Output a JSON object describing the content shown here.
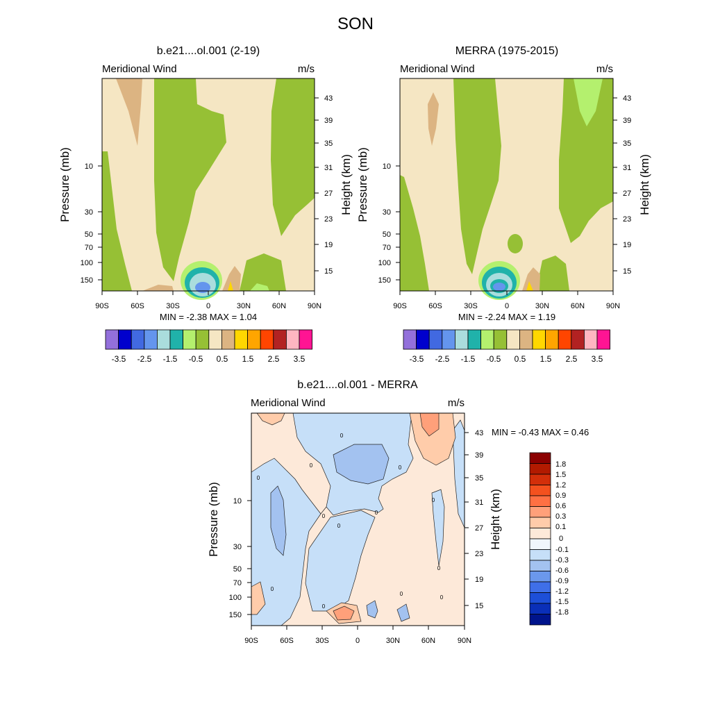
{
  "page_title": "SON",
  "chart_data": [
    {
      "type": "contour",
      "title": "b.e21....ol.001 (2-19)",
      "left_label": "Meridional Wind",
      "right_label": "m/s",
      "xlabel": "",
      "ylabel": "Pressure (mb)",
      "ylabel_right": "Height (km)",
      "xticks": [
        "90S",
        "60S",
        "30S",
        "0",
        "30N",
        "60N",
        "90N"
      ],
      "yticks": [
        "10",
        "30",
        "50",
        "70",
        "100",
        "150"
      ],
      "yticks_right": [
        "43",
        "39",
        "35",
        "31",
        "27",
        "23",
        "19",
        "15"
      ],
      "min_max_text": "MIN =  -2.38  MAX =   1.04",
      "min": -2.38,
      "max": 1.04,
      "colorbar_labels": [
        "-3.5",
        "-2.5",
        "-1.5",
        "-0.5",
        "0.5",
        "1.5",
        "2.5",
        "3.5"
      ],
      "colorbar_colors": [
        "#9370db",
        "#0000cd",
        "#4169e1",
        "#6495ed",
        "#aadddd",
        "#20b2aa",
        "#b4f06e",
        "#96c035",
        "#f5e6c3",
        "#dcb482",
        "#ffd700",
        "#ffa500",
        "#ff4500",
        "#b22222",
        "#ffb6c1",
        "#ff1493"
      ]
    },
    {
      "type": "contour",
      "title": "MERRA (1975-2015)",
      "left_label": "Meridional Wind",
      "right_label": "m/s",
      "xlabel": "",
      "ylabel": "Pressure (mb)",
      "ylabel_right": "Height (km)",
      "xticks": [
        "90S",
        "60S",
        "30S",
        "0",
        "30N",
        "60N",
        "90N"
      ],
      "yticks": [
        "10",
        "30",
        "50",
        "70",
        "100",
        "150"
      ],
      "yticks_right": [
        "43",
        "39",
        "35",
        "31",
        "27",
        "23",
        "19",
        "15"
      ],
      "min_max_text": "MIN =  -2.24  MAX =   1.19",
      "min": -2.24,
      "max": 1.19,
      "colorbar_labels": [
        "-3.5",
        "-2.5",
        "-1.5",
        "-0.5",
        "0.5",
        "1.5",
        "2.5",
        "3.5"
      ],
      "colorbar_colors": [
        "#9370db",
        "#0000cd",
        "#4169e1",
        "#6495ed",
        "#aadddd",
        "#20b2aa",
        "#b4f06e",
        "#96c035",
        "#f5e6c3",
        "#dcb482",
        "#ffd700",
        "#ffa500",
        "#ff4500",
        "#b22222",
        "#ffb6c1",
        "#ff1493"
      ]
    },
    {
      "type": "contour",
      "title": "b.e21....ol.001 - MERRA",
      "left_label": "Meridional Wind",
      "right_label": "m/s",
      "xlabel": "",
      "ylabel": "Pressure (mb)",
      "ylabel_right": "Height (km)",
      "xticks": [
        "90S",
        "60S",
        "30S",
        "0",
        "30N",
        "60N",
        "90N"
      ],
      "yticks": [
        "10",
        "30",
        "50",
        "70",
        "100",
        "150"
      ],
      "yticks_right": [
        "43",
        "39",
        "35",
        "31",
        "27",
        "23",
        "19",
        "15"
      ],
      "min_max_text": "MIN = -0.43  MAX =   0.46",
      "min": -0.43,
      "max": 0.46,
      "contour_label": "0",
      "colorbar_labels": [
        "1.8",
        "1.5",
        "1.2",
        "0.9",
        "0.6",
        "0.3",
        "0.1",
        "0",
        "-0.1",
        "-0.3",
        "-0.6",
        "-0.9",
        "-1.2",
        "-1.5",
        "-1.8"
      ],
      "colorbar_colors": [
        "#8b0000",
        "#b21a00",
        "#d32f0a",
        "#f4511e",
        "#ff7043",
        "#ffa07a",
        "#ffccaa",
        "#fde9d9",
        "#f0f6fc",
        "#c6dff8",
        "#a3c2f0",
        "#6b98ec",
        "#3f6fe8",
        "#1d4fd8",
        "#0a2fb8",
        "#00148c"
      ]
    }
  ]
}
